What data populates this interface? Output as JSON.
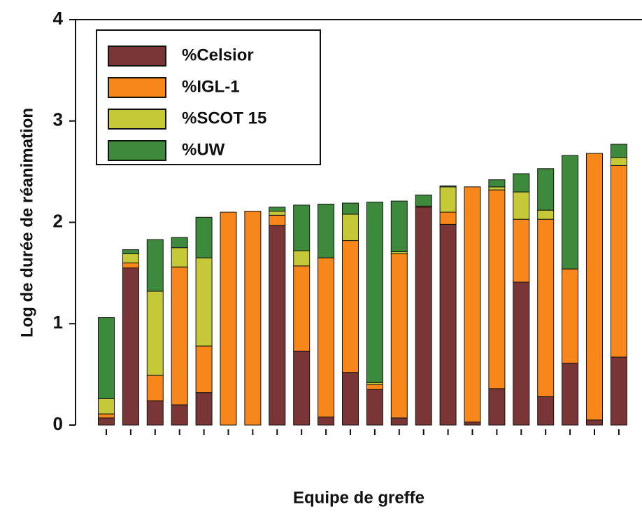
{
  "chart_data": {
    "type": "bar",
    "stacked": true,
    "x_label": "Equipe de greffe",
    "y_label": "Log de durée de réanimation",
    "categories": [
      null,
      null,
      null,
      null,
      null,
      null,
      null,
      null,
      null,
      null,
      null,
      null,
      null,
      null,
      null,
      null,
      null,
      null,
      null,
      null,
      null,
      null
    ],
    "series": [
      {
        "name": "%Celsior",
        "color": "#7a3536",
        "values": [
          0.07,
          1.55,
          0.24,
          0.2,
          0.32,
          0,
          0,
          1.97,
          0.73,
          0.08,
          0.52,
          0.35,
          0.07,
          2.15,
          1.98,
          0.03,
          0.36,
          1.41,
          0.28,
          0.61,
          0.05,
          0.67
        ]
      },
      {
        "name": "%IGL-1",
        "color": "#f7861b",
        "values": [
          0.04,
          0.05,
          0.25,
          1.36,
          0.46,
          2.1,
          2.11,
          0.1,
          0.84,
          1.57,
          1.3,
          0.05,
          1.62,
          0.01,
          0.12,
          2.32,
          1.96,
          0.62,
          1.75,
          0.93,
          2.63,
          1.89
        ]
      },
      {
        "name": "%SCOT 15",
        "color": "#c5c938",
        "values": [
          0.15,
          0.09,
          0.83,
          0.19,
          0.87,
          0,
          0,
          0.04,
          0.15,
          0,
          0.26,
          0.02,
          0.02,
          0,
          0.25,
          0,
          0.03,
          0.27,
          0.09,
          0,
          0,
          0.08
        ]
      },
      {
        "name": "%UW",
        "color": "#3e8a3c",
        "values": [
          0.8,
          0.04,
          0.51,
          0.1,
          0.4,
          0,
          0,
          0.04,
          0.45,
          0.53,
          0.11,
          1.78,
          0.5,
          0.11,
          0.01,
          0,
          0.07,
          0.18,
          0.41,
          1.12,
          0,
          0.13
        ]
      }
    ],
    "ylim": [
      0,
      4
    ],
    "yticks": [
      0,
      1,
      2,
      3,
      4
    ],
    "grid": false,
    "legend": "upper left"
  }
}
